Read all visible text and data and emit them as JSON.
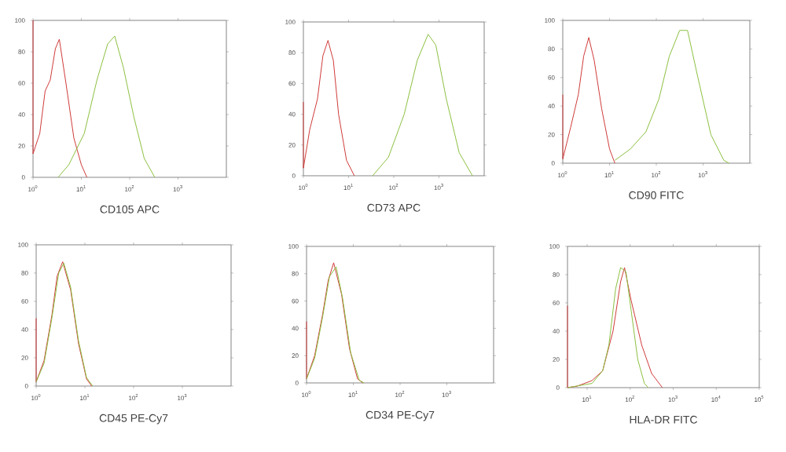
{
  "chart_data": [
    {
      "type": "line",
      "xlabel": "CD105 APC",
      "log": "x",
      "xlim": [
        1,
        10000
      ],
      "ylim": [
        0,
        100
      ],
      "xticks": [
        {
          "value": 1,
          "label": "10$^{0}$"
        },
        {
          "value": 10,
          "label": "10$^{1}$"
        },
        {
          "value": 100,
          "label": "10$^{2}$"
        },
        {
          "value": 1000,
          "label": "10$^{3}$"
        }
      ],
      "yticks": [
        0,
        20,
        40,
        60,
        80,
        100
      ],
      "series": [
        {
          "color": "#d03a3a",
          "x": [
            1,
            1,
            1.38,
            1.78,
            2.27,
            2.9,
            3.5,
            4.8,
            7,
            10,
            13
          ],
          "values": [
            100,
            15,
            28,
            55,
            62,
            82,
            88,
            60,
            25,
            8,
            0
          ]
        },
        {
          "color": "#8cc040",
          "x": [
            3.3,
            5.5,
            11.5,
            21,
            35,
            49,
            74,
            123,
            200,
            330
          ],
          "values": [
            0,
            8,
            28,
            62,
            85,
            90,
            70,
            38,
            12,
            0
          ]
        }
      ]
    },
    {
      "type": "line",
      "xlabel": "CD73 APC",
      "log": "x",
      "xlim": [
        1,
        10000
      ],
      "ylim": [
        0,
        100
      ],
      "xticks": [
        {
          "value": 1,
          "label": "10$^{0}$"
        },
        {
          "value": 10,
          "label": "10$^{1}$"
        },
        {
          "value": 100,
          "label": "10$^{2}$"
        },
        {
          "value": 1000,
          "label": "10$^{3}$"
        }
      ],
      "yticks": [
        0,
        20,
        40,
        60,
        80,
        100
      ],
      "series": [
        {
          "color": "#d03a3a",
          "x": [
            1,
            1,
            1.38,
            2.05,
            2.7,
            3.5,
            4.6,
            6,
            9,
            13.4
          ],
          "values": [
            48,
            5,
            30,
            50,
            78,
            88,
            75,
            40,
            10,
            0
          ]
        },
        {
          "color": "#8cc040",
          "x": [
            34,
            76,
            170,
            330,
            575,
            850,
            1450,
            2800,
            5500
          ],
          "values": [
            0,
            12,
            40,
            75,
            92,
            85,
            50,
            15,
            0
          ]
        }
      ]
    },
    {
      "type": "line",
      "xlabel": "CD90 FITC",
      "log": "x",
      "xlim": [
        1,
        10000
      ],
      "ylim": [
        0,
        100
      ],
      "xticks": [
        {
          "value": 1,
          "label": "10$^{0}$"
        },
        {
          "value": 10,
          "label": "10$^{1}$"
        },
        {
          "value": 100,
          "label": "10$^{2}$"
        },
        {
          "value": 1000,
          "label": "10$^{3}$"
        }
      ],
      "yticks": [
        0,
        20,
        40,
        60,
        80,
        100
      ],
      "series": [
        {
          "color": "#d03a3a",
          "x": [
            1,
            1,
            1.47,
            2.15,
            2.8,
            3.6,
            4.7,
            6.8,
            10,
            13
          ],
          "values": [
            48,
            3,
            25,
            48,
            75,
            88,
            72,
            38,
            10,
            0
          ]
        },
        {
          "color": "#8cc040",
          "x": [
            13,
            28,
            60,
            114,
            190,
            316,
            465,
            775,
            1470,
            2780,
            3600
          ],
          "values": [
            2,
            10,
            22,
            45,
            75,
            93,
            93,
            60,
            20,
            2,
            0
          ]
        }
      ]
    },
    {
      "type": "line",
      "xlabel": "CD45 PE-Cy7",
      "log": "x",
      "xlim": [
        1,
        10000
      ],
      "ylim": [
        0,
        100
      ],
      "xticks": [
        {
          "value": 1,
          "label": "10$^{0}$"
        },
        {
          "value": 10,
          "label": "10$^{1}$"
        },
        {
          "value": 100,
          "label": "10$^{2}$"
        },
        {
          "value": 1000,
          "label": "10$^{3}$"
        }
      ],
      "yticks": [
        0,
        20,
        40,
        60,
        80,
        100
      ],
      "series": [
        {
          "color": "#d03a3a",
          "x": [
            1,
            1,
            1.45,
            2.1,
            2.7,
            3.5,
            5.1,
            7.4,
            10.8,
            13.8
          ],
          "values": [
            48,
            3,
            18,
            50,
            78,
            88,
            68,
            30,
            5,
            0
          ]
        },
        {
          "color": "#8cc040",
          "x": [
            1,
            1.45,
            2.1,
            2.9,
            3.7,
            5.1,
            7.4,
            10.8,
            14.5
          ],
          "values": [
            3,
            16,
            48,
            80,
            87,
            70,
            32,
            6,
            0
          ]
        }
      ]
    },
    {
      "type": "line",
      "xlabel": "CD34 PE-Cy7",
      "log": "x",
      "xlim": [
        1,
        10000
      ],
      "ylim": [
        0,
        100
      ],
      "xticks": [
        {
          "value": 1,
          "label": "10$^{0}$"
        },
        {
          "value": 10,
          "label": "10$^{1}$"
        },
        {
          "value": 100,
          "label": "10$^{2}$"
        },
        {
          "value": 1000,
          "label": "10$^{3}$"
        }
      ],
      "yticks": [
        0,
        20,
        40,
        60,
        80,
        100
      ],
      "series": [
        {
          "color": "#d03a3a",
          "x": [
            1,
            1,
            1.49,
            2.2,
            2.9,
            3.8,
            5.6,
            8.3,
            12.3,
            16
          ],
          "values": [
            45,
            3,
            20,
            50,
            75,
            88,
            65,
            25,
            3,
            0
          ]
        },
        {
          "color": "#8cc040",
          "x": [
            1,
            1.49,
            2.2,
            3.1,
            4.3,
            5.9,
            8.8,
            13.4,
            17
          ],
          "values": [
            3,
            18,
            48,
            78,
            85,
            62,
            22,
            2,
            0
          ]
        }
      ]
    },
    {
      "type": "line",
      "xlabel": "HLA-DR FITC",
      "log": "x",
      "xlim": [
        3.5,
        100000
      ],
      "ylim": [
        0,
        100
      ],
      "xticks": [
        {
          "value": 10,
          "label": "10$^{1}$"
        },
        {
          "value": 100,
          "label": "10$^{2}$"
        },
        {
          "value": 1000,
          "label": "10$^{3}$"
        },
        {
          "value": 10000,
          "label": "10$^{4}$"
        },
        {
          "value": 100000,
          "label": "10$^{5}$"
        }
      ],
      "yticks": [
        0,
        20,
        40,
        60,
        80,
        100
      ],
      "series": [
        {
          "color": "#d03a3a",
          "x": [
            3.5,
            3.5,
            5.8,
            13,
            23,
            40,
            60,
            74,
            105,
            186,
            316,
            560
          ],
          "values": [
            58,
            0,
            1,
            5,
            12,
            40,
            75,
            85,
            62,
            30,
            10,
            0
          ]
        },
        {
          "color": "#8cc040",
          "x": [
            3.5,
            13,
            23,
            32,
            46,
            60,
            80,
            105,
            150,
            214,
            263
          ],
          "values": [
            0,
            3,
            12,
            30,
            70,
            85,
            82,
            55,
            20,
            3,
            0
          ]
        }
      ]
    }
  ]
}
